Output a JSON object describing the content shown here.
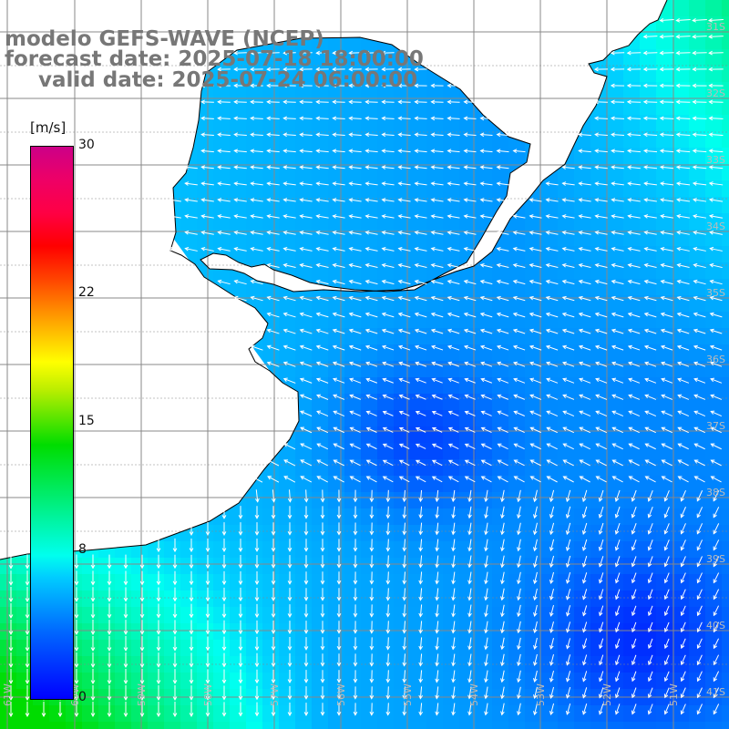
{
  "title": {
    "line1": "modelo GEFS-WAVE (NCEP)",
    "line2": "forecast date: 2025-07-18 18:00:00",
    "line3": "valid date: 2025-07-24 06:00:00"
  },
  "colorbar": {
    "unit": "[m/s]",
    "min": 0,
    "max": 30,
    "ticks": [
      {
        "value": 30,
        "label": "30"
      },
      {
        "value": 22,
        "label": "22"
      },
      {
        "value": 15,
        "label": "15"
      },
      {
        "value": 8,
        "label": "8"
      },
      {
        "value": 0,
        "label": "0"
      }
    ]
  },
  "map": {
    "variable": "wind speed with direction arrows",
    "lon_range": [
      -61,
      -50
    ],
    "lat_range": [
      -41,
      -30
    ],
    "lat_labels": [
      "31S",
      "32S",
      "33S",
      "34S",
      "35S",
      "36S",
      "37S",
      "38S",
      "39S",
      "40S",
      "41S"
    ],
    "lon_labels": [
      "61W",
      "60W",
      "59W",
      "58W",
      "57W",
      "56W",
      "55W",
      "54W",
      "53W",
      "52W",
      "51W"
    ],
    "land_color": "#ffffff",
    "grid_color": "#888888",
    "arrow_color": "#ffffff",
    "coast_color": "#000000"
  }
}
